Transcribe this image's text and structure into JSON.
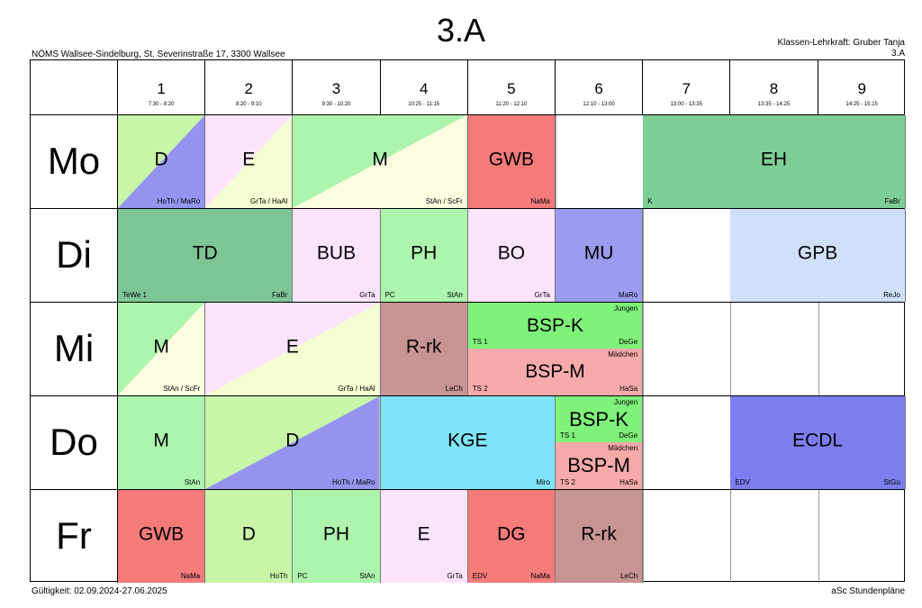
{
  "header": {
    "title": "3.A",
    "school": "NÖMS Wallsee-Sindelburg, St. Severinstraße 17, 3300 Wallsee",
    "teacher_line": "Klassen-Lehrkraft: Gruber Tanja",
    "class_line": "3.A"
  },
  "footer": {
    "validity": "Gültigkeit: 02.09.2024-27.06.2025",
    "software": "aSc Stundenpläne"
  },
  "periods": [
    {
      "num": "1",
      "time": "7:30 - 8:20"
    },
    {
      "num": "2",
      "time": "8:20 - 9:10"
    },
    {
      "num": "3",
      "time": "9:30 - 10:20"
    },
    {
      "num": "4",
      "time": "10:25 - 11:15"
    },
    {
      "num": "5",
      "time": "11:20 - 12:10"
    },
    {
      "num": "6",
      "time": "12:10 - 13:00"
    },
    {
      "num": "7",
      "time": "13:00 - 13:35"
    },
    {
      "num": "8",
      "time": "13:35 - 14:25"
    },
    {
      "num": "9",
      "time": "14:25 - 15:15"
    }
  ],
  "days": [
    "Mo",
    "Di",
    "Mi",
    "Do",
    "Fr"
  ],
  "colors": {
    "D": "#c8f5a8",
    "D_b": "#9494f0",
    "E": "#fce4fc",
    "E_b": "#f5fdd2",
    "M": "#adf5ad",
    "M_b": "#fdfde0",
    "GWB": "#f57a7a",
    "EH": "#7ecf96",
    "TD": "#7ec596",
    "BUB": "#fce4fc",
    "PH": "#adf5ad",
    "BO": "#fce4fc",
    "MU": "#9b9bf0",
    "GPB": "#cfdffc",
    "RRK": "#c79393",
    "BSPK": "#7ff27a",
    "BSPM": "#f7aaaa",
    "KGE": "#7fe4fb",
    "ECDL": "#7d7df0",
    "DG": "#f57a7a"
  },
  "lessons": [
    {
      "day": 0,
      "start": 0,
      "span": 1,
      "subject": "D",
      "right": "HoTh / MaRo",
      "left": "",
      "split": "D_b",
      "color": "D"
    },
    {
      "day": 0,
      "start": 1,
      "span": 1,
      "subject": "E",
      "right": "GrTa / HaAl",
      "left": "",
      "split": "E_b",
      "color": "E"
    },
    {
      "day": 0,
      "start": 2,
      "span": 2,
      "subject": "M",
      "right": "StAn / ScFr",
      "left": "",
      "split": "M_b",
      "color": "M"
    },
    {
      "day": 0,
      "start": 4,
      "span": 1,
      "subject": "GWB",
      "right": "NaMa",
      "left": "",
      "color": "GWB"
    },
    {
      "day": 0,
      "start": 6,
      "span": 3,
      "subject": "EH",
      "right": "FaBr",
      "left": "K",
      "color": "EH"
    },
    {
      "day": 1,
      "start": 0,
      "span": 2,
      "subject": "TD",
      "right": "FaBr",
      "left": "TeWe 1",
      "color": "TD"
    },
    {
      "day": 1,
      "start": 2,
      "span": 1,
      "subject": "BUB",
      "right": "GrTa",
      "left": "",
      "color": "BUB"
    },
    {
      "day": 1,
      "start": 3,
      "span": 1,
      "subject": "PH",
      "right": "StAn",
      "left": "PC",
      "color": "PH"
    },
    {
      "day": 1,
      "start": 4,
      "span": 1,
      "subject": "BO",
      "right": "GrTa",
      "left": "",
      "color": "BO"
    },
    {
      "day": 1,
      "start": 5,
      "span": 1,
      "subject": "MU",
      "right": "MaRo",
      "left": "",
      "color": "MU"
    },
    {
      "day": 1,
      "start": 7,
      "span": 2,
      "subject": "GPB",
      "right": "ReJo",
      "left": "",
      "color": "GPB"
    },
    {
      "day": 2,
      "start": 0,
      "span": 1,
      "subject": "M",
      "right": "StAn / ScFr",
      "left": "",
      "split": "M_b",
      "color": "M"
    },
    {
      "day": 2,
      "start": 1,
      "span": 2,
      "subject": "E",
      "right": "GrTa / HaAl",
      "left": "",
      "split": "E_b",
      "color": "E"
    },
    {
      "day": 2,
      "start": 3,
      "span": 1,
      "subject": "R-rk",
      "right": "LeCh",
      "left": "",
      "color": "RRK"
    },
    {
      "day": 2,
      "start": 4,
      "span": 2,
      "subject": "BSP-K",
      "right": "DeGe",
      "left": "TS 1",
      "group": "Jungen",
      "half": "top",
      "color": "BSPK"
    },
    {
      "day": 2,
      "start": 4,
      "span": 2,
      "subject": "BSP-M",
      "right": "HaSa",
      "left": "TS 2",
      "group": "Mädchen",
      "half": "bottom",
      "color": "BSPM"
    },
    {
      "day": 3,
      "start": 0,
      "span": 1,
      "subject": "M",
      "right": "StAn",
      "left": "",
      "color": "M"
    },
    {
      "day": 3,
      "start": 1,
      "span": 2,
      "subject": "D",
      "right": "HoTh / MaRo",
      "left": "",
      "split": "D_b",
      "color": "D"
    },
    {
      "day": 3,
      "start": 3,
      "span": 2,
      "subject": "KGE",
      "right": "Miro",
      "left": "",
      "color": "KGE"
    },
    {
      "day": 3,
      "start": 5,
      "span": 1,
      "subject": "BSP-K",
      "right": "DeGe",
      "left": "TS 1",
      "group": "Jungen",
      "half": "top",
      "color": "BSPK"
    },
    {
      "day": 3,
      "start": 5,
      "span": 1,
      "subject": "BSP-M",
      "right": "HaSa",
      "left": "TS 2",
      "group": "Mädchen",
      "half": "bottom",
      "color": "BSPM"
    },
    {
      "day": 3,
      "start": 7,
      "span": 2,
      "subject": "ECDL",
      "right": "StGu",
      "left": "EDV",
      "color": "ECDL"
    },
    {
      "day": 4,
      "start": 0,
      "span": 1,
      "subject": "GWB",
      "right": "NaMa",
      "left": "",
      "color": "GWB"
    },
    {
      "day": 4,
      "start": 1,
      "span": 1,
      "subject": "D",
      "right": "HoTh",
      "left": "",
      "color": "D"
    },
    {
      "day": 4,
      "start": 2,
      "span": 1,
      "subject": "PH",
      "right": "StAn",
      "left": "PC",
      "color": "PH"
    },
    {
      "day": 4,
      "start": 3,
      "span": 1,
      "subject": "E",
      "right": "GrTa",
      "left": "",
      "color": "E"
    },
    {
      "day": 4,
      "start": 4,
      "span": 1,
      "subject": "DG",
      "right": "NaMa",
      "left": "EDV",
      "color": "DG"
    },
    {
      "day": 4,
      "start": 5,
      "span": 1,
      "subject": "R-rk",
      "right": "LeCh",
      "left": "",
      "color": "RRK"
    }
  ]
}
